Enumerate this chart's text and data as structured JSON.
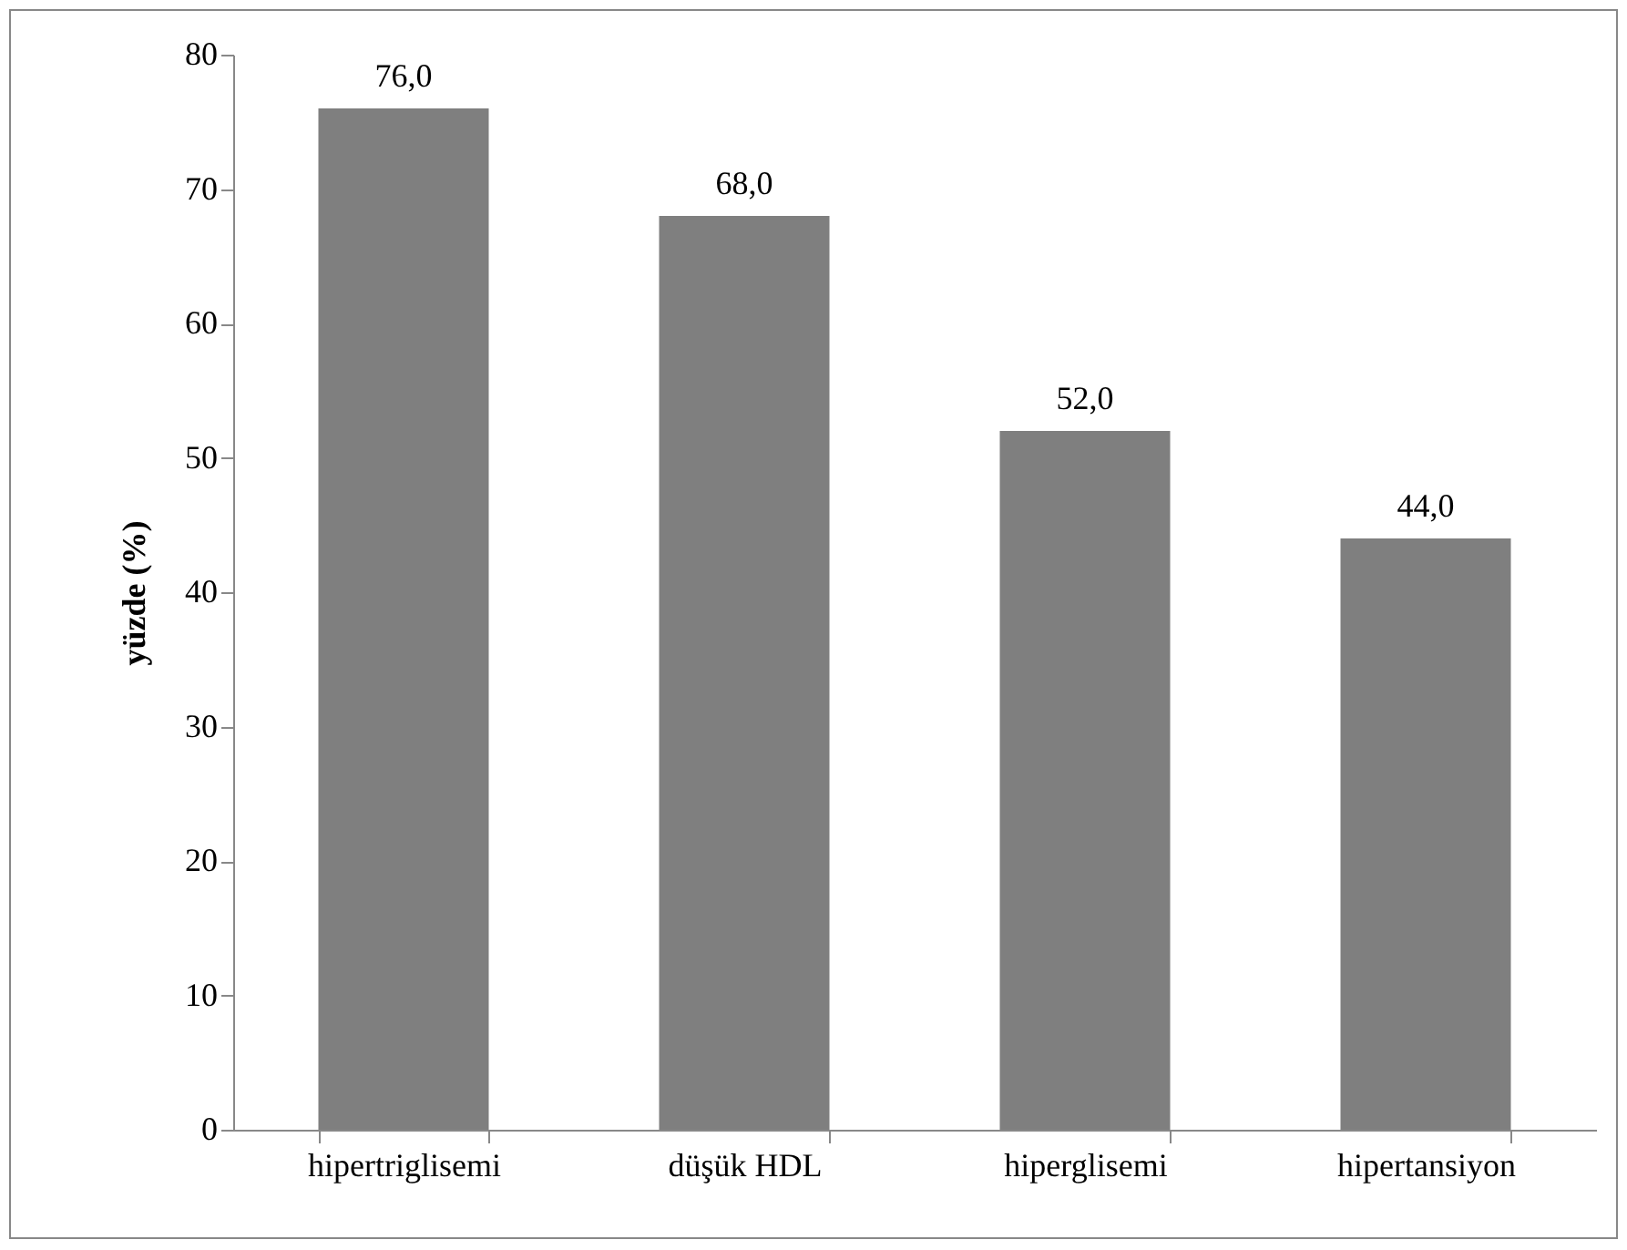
{
  "chart_data": {
    "type": "bar",
    "ylabel": "yüzde (%)",
    "categories": [
      "hipertriglisemi",
      "düşük HDL",
      "hiperglisemi",
      "hipertansiyon"
    ],
    "values": [
      76,
      68,
      52,
      44
    ],
    "value_labels": [
      "76,0",
      "68,0",
      "52,0",
      "44,0"
    ],
    "color": "#7f7f7f",
    "ylim": [
      0,
      80
    ],
    "yticks": [
      0,
      10,
      20,
      30,
      40,
      50,
      60,
      70,
      80
    ],
    "grid": false
  }
}
